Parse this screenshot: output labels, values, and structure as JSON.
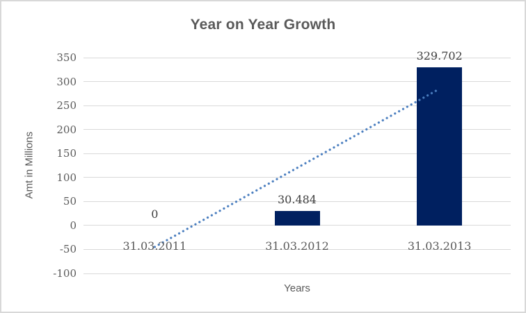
{
  "frame": {
    "background": "#FFFFFF",
    "border_color": "#D8D8D8"
  },
  "chart_data": {
    "type": "bar",
    "title": "Year on Year Growth",
    "xlabel": "Years",
    "ylabel": "Amt in Millions",
    "categories": [
      "31.03.2011",
      "31.03.2012",
      "31.03.2013"
    ],
    "values": [
      0,
      30.484,
      329.702
    ],
    "data_labels": [
      "0",
      "30.484",
      "329.702"
    ],
    "ylim": [
      -100,
      350
    ],
    "ytick_step": 50,
    "yticks": [
      350,
      300,
      250,
      200,
      150,
      100,
      50,
      0,
      -50,
      -100
    ],
    "grid": true,
    "legend": "none",
    "bar_color": "#002060",
    "trendline": {
      "type": "linear",
      "style": "dotted",
      "color": "#4A7EBF",
      "start_value": -44.8,
      "end_value": 284.9
    },
    "colors": {
      "grid": "#D9D9D9",
      "title_text": "#595959",
      "axis_text": "#595959",
      "label_text": "#3F3F3F"
    }
  }
}
